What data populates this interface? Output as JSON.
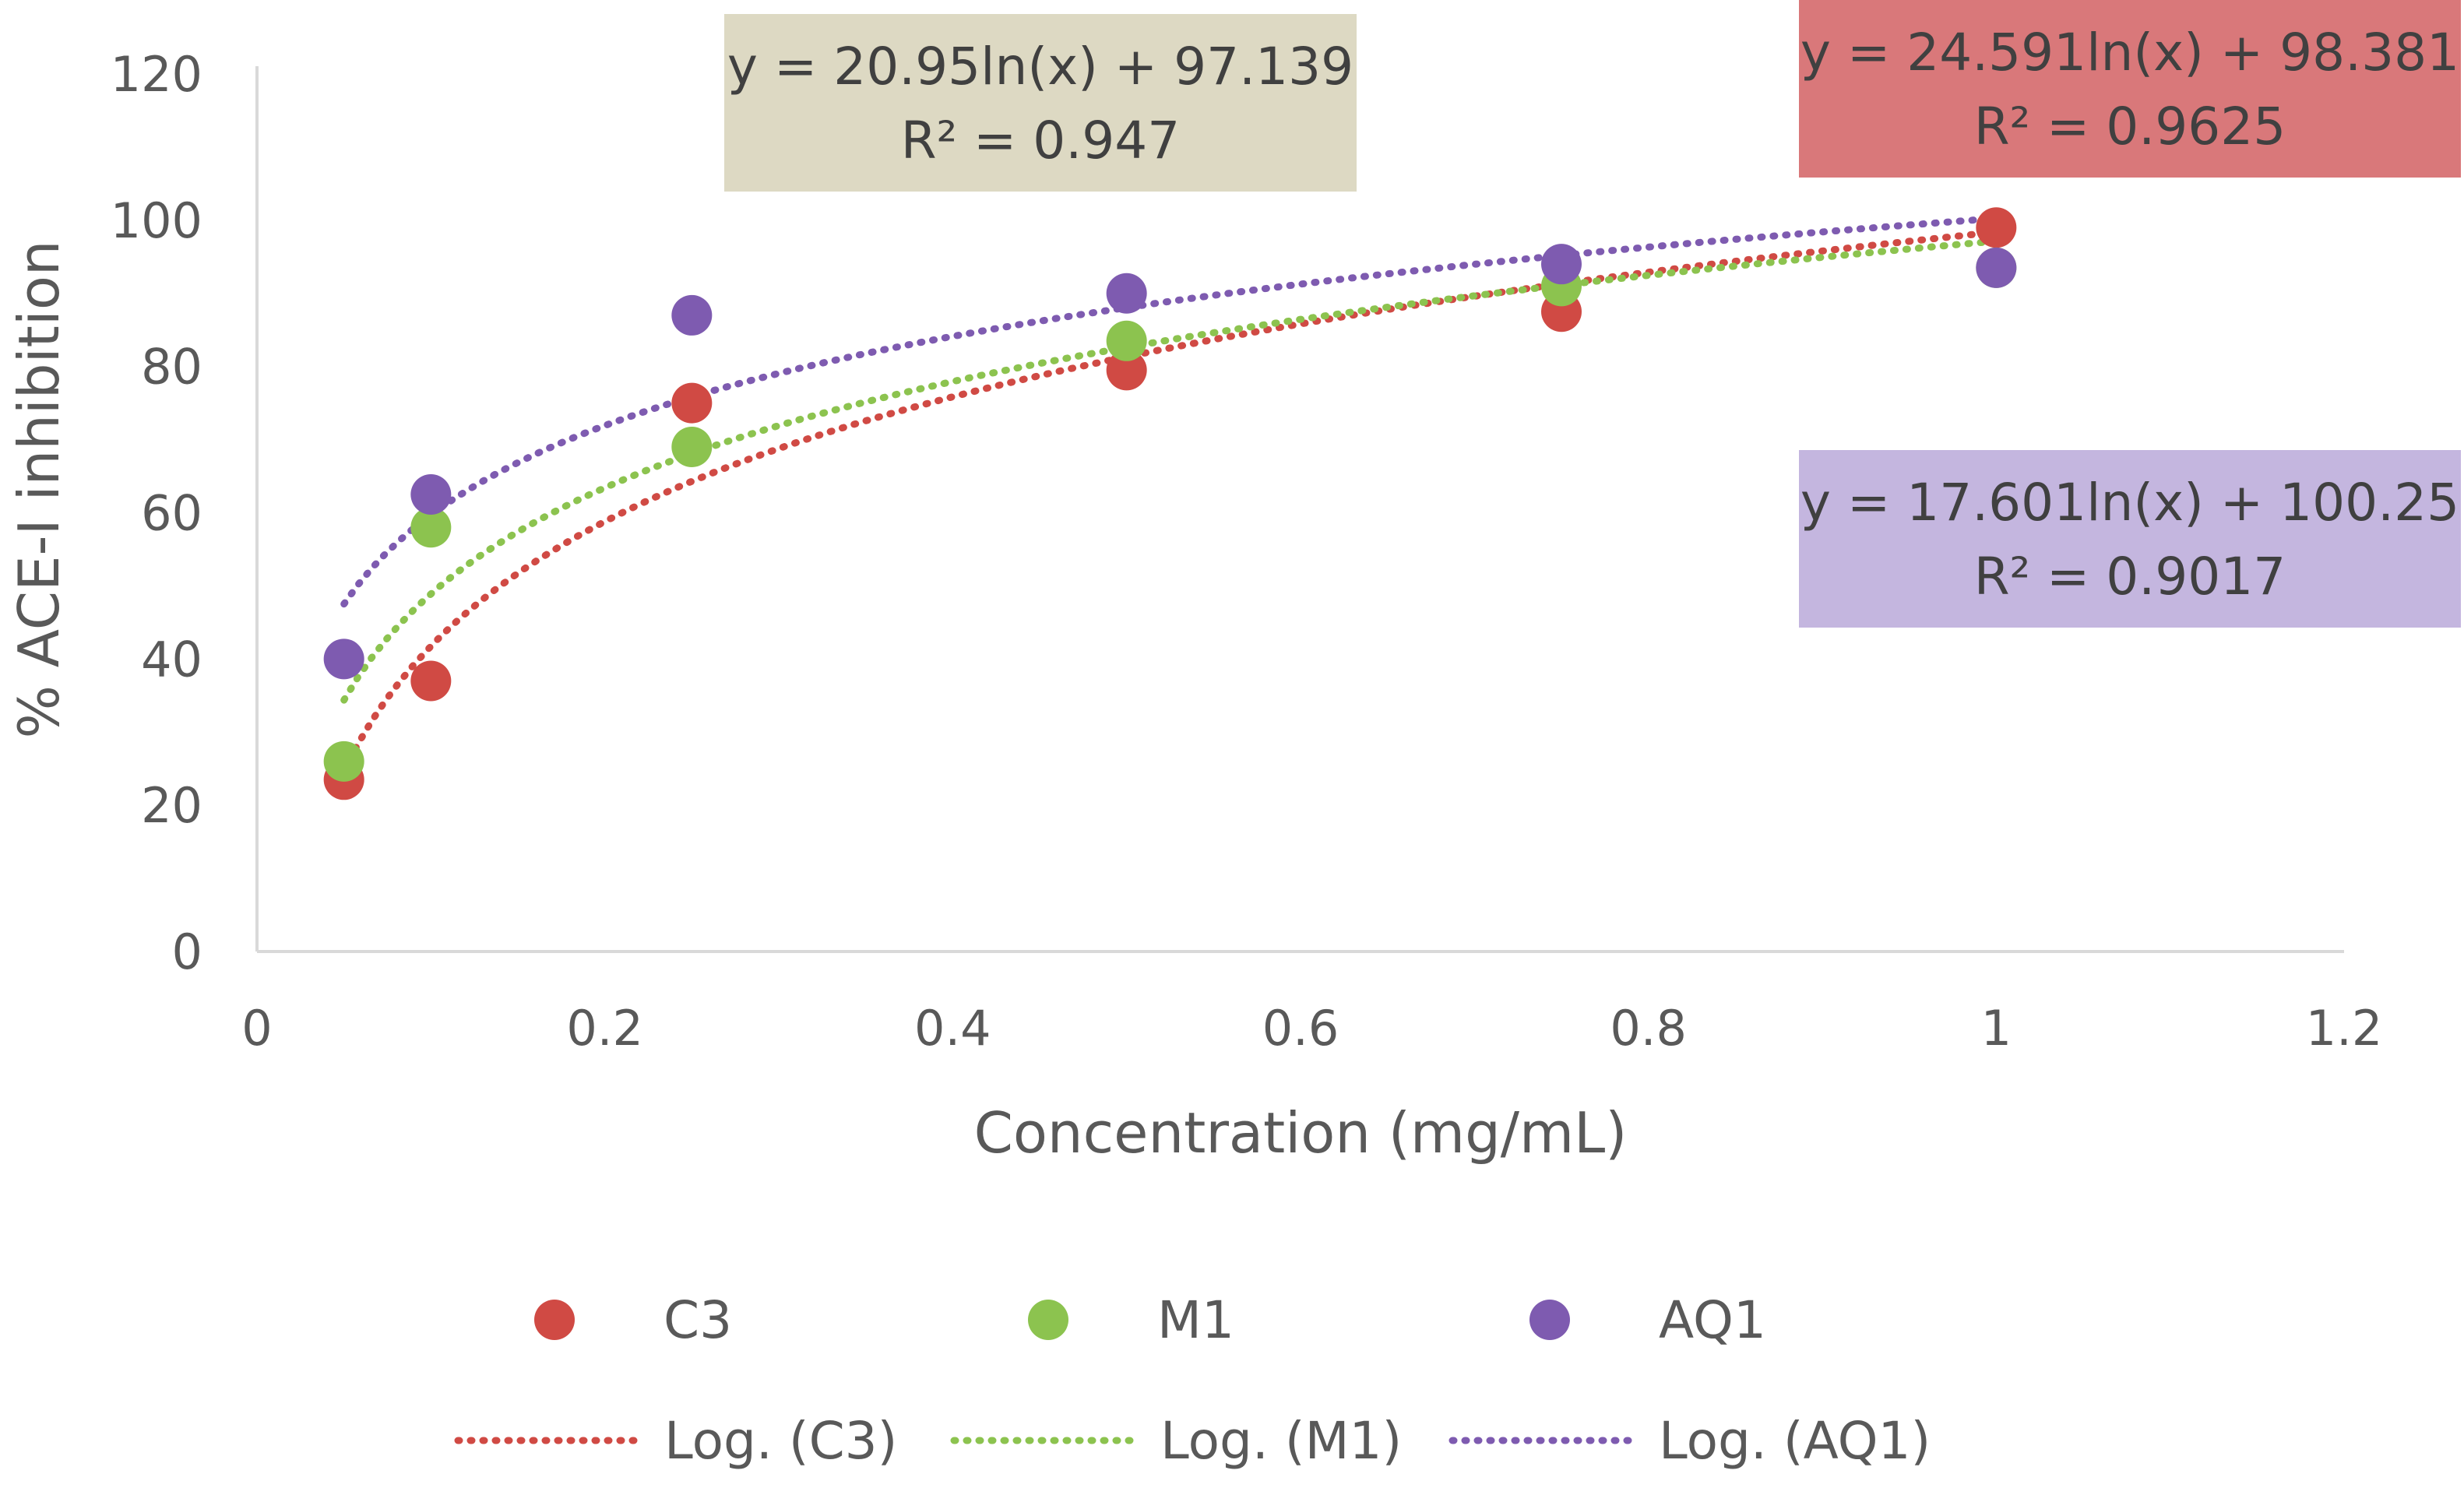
{
  "chart_data": {
    "type": "scatter",
    "title": "",
    "xlabel": "Concentration (mg/mL)",
    "ylabel": "% ACE-I inhibition",
    "xlim": [
      0,
      1.2
    ],
    "ylim": [
      0,
      120
    ],
    "x_ticks": [
      "0",
      "0.2",
      "0.4",
      "0.6",
      "0.8",
      "1",
      "1.2"
    ],
    "y_ticks": [
      "0",
      "20",
      "40",
      "60",
      "80",
      "100",
      "120"
    ],
    "grid": false,
    "legend_position": "bottom",
    "series": [
      {
        "name": "C3",
        "color": "#D04A44",
        "x": [
          0.05,
          0.1,
          0.25,
          0.5,
          0.75,
          1.0
        ],
        "y": [
          23.5,
          37,
          75,
          79.5,
          87.5,
          99
        ],
        "trendline": {
          "type": "log",
          "legend": "Log. (C3)",
          "a": 24.591,
          "b": 98.381,
          "equation": "y = 24.591ln(x) + 98.381",
          "r2": "R² = 0.9625",
          "label_color": "#D9787A"
        }
      },
      {
        "name": "M1",
        "color": "#8CC34F",
        "x": [
          0.05,
          0.1,
          0.25,
          0.5,
          0.75,
          1.0
        ],
        "y": [
          26,
          58,
          69,
          83.5,
          91,
          93.5
        ],
        "trendline": {
          "type": "log",
          "legend": "Log. (M1)",
          "a": 20.95,
          "b": 97.139,
          "equation": "y = 20.95ln(x) + 97.139",
          "r2": "R² = 0.947",
          "label_color": "#DDD9C3"
        }
      },
      {
        "name": "AQ1",
        "color": "#7E5BB0",
        "x": [
          0.05,
          0.1,
          0.25,
          0.5,
          0.75,
          1.0
        ],
        "y": [
          40,
          62.5,
          87,
          90,
          94,
          93.5
        ],
        "trendline": {
          "type": "log",
          "legend": "Log. (AQ1)",
          "a": 17.601,
          "b": 100.25,
          "equation": "y = 17.601ln(x) + 100.25",
          "r2": "R² = 0.9017",
          "label_color": "#C4B6DF"
        }
      }
    ]
  }
}
